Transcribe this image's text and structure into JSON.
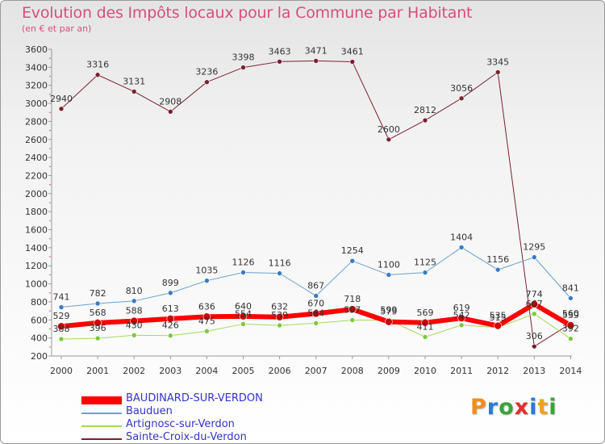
{
  "title": "Evolution des Impôts locaux pour la Commune par Habitant",
  "subtitle": "(en € et par an)",
  "logo": {
    "letters": [
      "P",
      "r",
      "o",
      "x",
      "i",
      "t",
      "i"
    ],
    "colors": [
      "#f08c1e",
      "#2b7bd6",
      "#3aa33a",
      "#e0302a",
      "#2b7bd6",
      "#f0a020",
      "#3aa33a"
    ]
  },
  "chart_data": {
    "type": "line",
    "x": [
      2000,
      2001,
      2002,
      2003,
      2004,
      2005,
      2006,
      2007,
      2008,
      2009,
      2010,
      2011,
      2012,
      2013,
      2014
    ],
    "ylim": [
      200,
      3600
    ],
    "yticks": [
      200,
      400,
      600,
      800,
      1000,
      1200,
      1400,
      1600,
      1800,
      2000,
      2200,
      2400,
      2600,
      2800,
      3000,
      3200,
      3400,
      3600
    ],
    "grid": false,
    "series": [
      {
        "name": "Sainte-Croix-du-Verdon",
        "color": "#7a2030",
        "marker": "#7a2030",
        "width": 1,
        "values": [
          2940,
          3316,
          3131,
          2908,
          3236,
          3398,
          3463,
          3471,
          3461,
          2600,
          2812,
          3056,
          3345,
          306,
          560
        ],
        "labels": [
          "2940",
          "3316",
          "3131",
          "2908",
          "3236",
          "3398",
          "3463",
          "3471",
          "3461",
          "2600",
          "2812",
          "3056",
          "3345",
          "306",
          "560"
        ]
      },
      {
        "name": "Bauduen",
        "color": "#6a9fd0",
        "marker": "#3a7cc0",
        "width": 1,
        "values": [
          741,
          782,
          810,
          899,
          1035,
          1126,
          1116,
          867,
          1254,
          1100,
          1125,
          1404,
          1156,
          1295,
          841
        ],
        "labels": [
          "741",
          "782",
          "810",
          "899",
          "1035",
          "1126",
          "1116",
          "867",
          "1254",
          "1100",
          "1125",
          "1404",
          "1156",
          "1295",
          "841"
        ]
      },
      {
        "name": "Artignosc-sur-Verdon",
        "color": "#a6d860",
        "marker": "#7cc93a",
        "width": 1,
        "values": [
          388,
          396,
          430,
          426,
          475,
          554,
          539,
          564,
          597,
          599,
          411,
          542,
          515,
          667,
          392
        ],
        "labels": [
          "388",
          "396",
          "430",
          "426",
          "475",
          "554",
          "539",
          "564",
          "597",
          "599",
          "411",
          "542",
          "515",
          "667",
          "392"
        ]
      },
      {
        "name": "BAUDINARD-SUR-VERDON",
        "color": "#ff0000",
        "marker": "#cc0000",
        "width": 6,
        "values": [
          529,
          568,
          588,
          613,
          636,
          640,
          632,
          670,
          718,
          579,
          569,
          619,
          535,
          774,
          539
        ],
        "labels": [
          "529",
          "568",
          "588",
          "613",
          "636",
          "640",
          "632",
          "670",
          "718",
          "579",
          "569",
          "619",
          "535",
          "774",
          "539"
        ]
      }
    ],
    "legend": [
      {
        "name": "BAUDINARD-SUR-VERDON",
        "color": "#ff0000",
        "thickness": 10
      },
      {
        "name": "Bauduen",
        "color": "#6a9fd0",
        "thickness": 2
      },
      {
        "name": "Artignosc-sur-Verdon",
        "color": "#a6d860",
        "thickness": 2
      },
      {
        "name": "Sainte-Croix-du-Verdon",
        "color": "#7a2030",
        "thickness": 2
      }
    ]
  }
}
